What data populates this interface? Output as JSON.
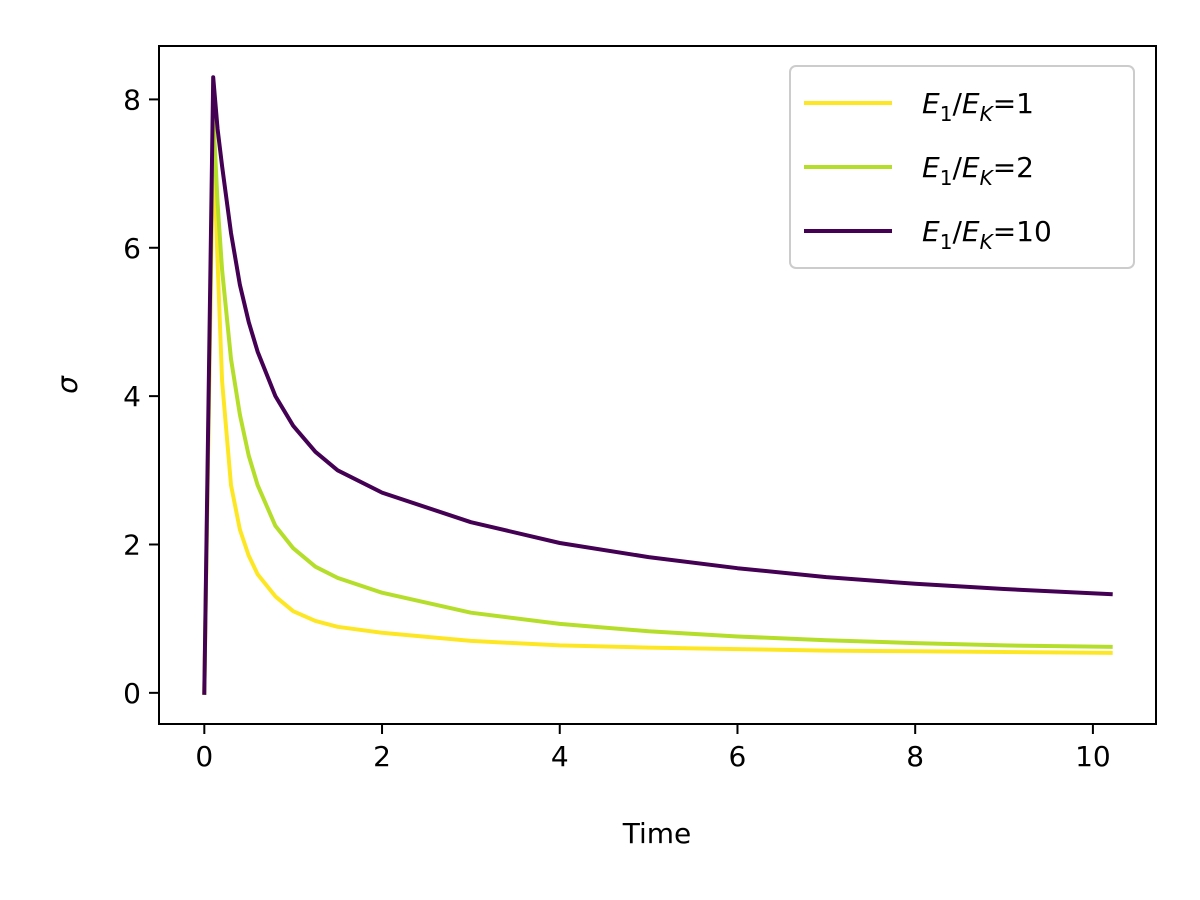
{
  "chart_data": {
    "type": "line",
    "xlabel": "Time",
    "ylabel": "σ",
    "xlim": [
      -0.51,
      10.71
    ],
    "ylim": [
      -0.42,
      8.72
    ],
    "xticks": [
      0,
      2,
      4,
      6,
      8,
      10
    ],
    "yticks": [
      0,
      2,
      4,
      6,
      8
    ],
    "grid": false,
    "legend_position": "top-right",
    "series": [
      {
        "name": "E1/EK=1",
        "color": "#fde725",
        "x": [
          0,
          0.1,
          0.15,
          0.2,
          0.3,
          0.4,
          0.5,
          0.6,
          0.8,
          1.0,
          1.25,
          1.5,
          2.0,
          3.0,
          4.0,
          5.0,
          6.0,
          7.0,
          8.0,
          9.0,
          10.2
        ],
        "y": [
          0,
          7.5,
          5.8,
          4.2,
          2.8,
          2.2,
          1.85,
          1.6,
          1.3,
          1.1,
          0.97,
          0.89,
          0.81,
          0.7,
          0.64,
          0.61,
          0.59,
          0.57,
          0.56,
          0.55,
          0.54
        ]
      },
      {
        "name": "E1/EK=2",
        "color": "#b5de2b",
        "x": [
          0,
          0.1,
          0.15,
          0.2,
          0.3,
          0.4,
          0.5,
          0.6,
          0.8,
          1.0,
          1.25,
          1.5,
          2.0,
          3.0,
          4.0,
          5.0,
          6.0,
          7.0,
          8.0,
          9.0,
          10.2
        ],
        "y": [
          0,
          7.8,
          6.6,
          5.7,
          4.5,
          3.75,
          3.2,
          2.8,
          2.25,
          1.95,
          1.7,
          1.55,
          1.35,
          1.08,
          0.93,
          0.83,
          0.76,
          0.71,
          0.67,
          0.64,
          0.62
        ]
      },
      {
        "name": "E1/EK=10",
        "color": "#440154",
        "x": [
          0,
          0.1,
          0.15,
          0.2,
          0.3,
          0.4,
          0.5,
          0.6,
          0.8,
          1.0,
          1.25,
          1.5,
          2.0,
          3.0,
          4.0,
          5.0,
          6.0,
          7.0,
          8.0,
          9.0,
          10.2
        ],
        "y": [
          0,
          8.3,
          7.6,
          7.1,
          6.2,
          5.5,
          5.0,
          4.6,
          4.0,
          3.6,
          3.25,
          3.0,
          2.7,
          2.3,
          2.02,
          1.83,
          1.68,
          1.56,
          1.47,
          1.4,
          1.33
        ]
      }
    ]
  }
}
